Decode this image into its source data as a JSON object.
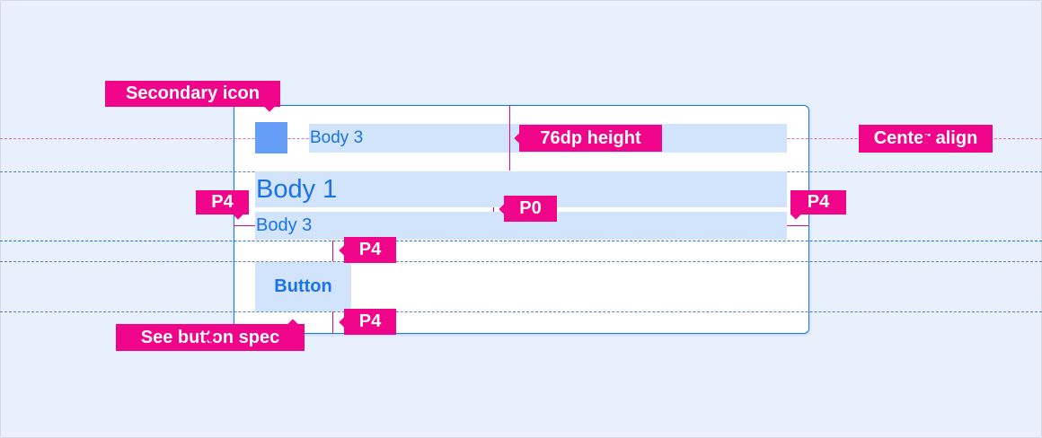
{
  "labels": {
    "secondary_icon": "Secondary icon",
    "height": "76dp height",
    "center_align": "Center align",
    "padding_left": "P4",
    "padding_right": "P4",
    "padding_zero": "P0",
    "padding_above_button": "P4",
    "padding_below_button": "P4",
    "button_spec": "See button spec"
  },
  "card": {
    "overline": "Body 3",
    "title": "Body 1",
    "subtitle": "Body 3",
    "button_label": "Button"
  },
  "colors": {
    "annotation": "#f0058a",
    "primary": "#1a73e8",
    "highlight": "#d2e3fc",
    "icon": "#669df6",
    "background": "#e8f0fe"
  }
}
